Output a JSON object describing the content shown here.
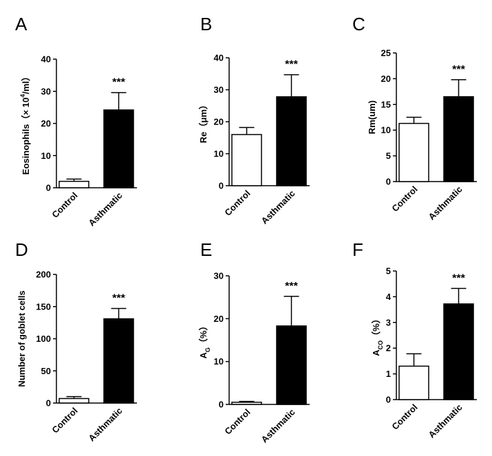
{
  "figure": {
    "panels": [
      "A",
      "B",
      "C",
      "D",
      "E",
      "F"
    ]
  },
  "chart_data": [
    {
      "panel": "A",
      "type": "bar",
      "categories": [
        "Control",
        "Asthmatic"
      ],
      "values": [
        2.0,
        24.2
      ],
      "errors": [
        0.7,
        5.4
      ],
      "fills": [
        "#ffffff",
        "#000000"
      ],
      "significance": "***",
      "ylabel": {
        "main": "Eosinophils（× 10",
        "sup": "4",
        "tail": "/ml）"
      },
      "ylim": [
        0,
        40
      ],
      "yticks": [
        0,
        10,
        20,
        30,
        40
      ],
      "ytick_labels": [
        "0",
        "10",
        "20",
        "30",
        "40"
      ]
    },
    {
      "panel": "B",
      "type": "bar",
      "categories": [
        "Control",
        "Asthmatic"
      ],
      "values": [
        16.0,
        27.8
      ],
      "errors": [
        2.2,
        6.9
      ],
      "fills": [
        "#ffffff",
        "#000000"
      ],
      "significance": "***",
      "ylabel": {
        "main": "Re（μm）"
      },
      "ylim": [
        0,
        40
      ],
      "yticks": [
        0,
        10,
        20,
        30,
        40
      ],
      "ytick_labels": [
        "0",
        "10",
        "20",
        "30",
        "40"
      ]
    },
    {
      "panel": "C",
      "type": "bar",
      "categories": [
        "Control",
        "Asthmatic"
      ],
      "values": [
        11.3,
        16.5
      ],
      "errors": [
        1.2,
        3.3
      ],
      "fills": [
        "#ffffff",
        "#000000"
      ],
      "significance": "***",
      "ylabel": {
        "main": "Rm(um)"
      },
      "ylim": [
        0,
        25
      ],
      "yticks": [
        0,
        5,
        10,
        15,
        20,
        25
      ],
      "ytick_labels": [
        "0",
        "5",
        "10",
        "15",
        "20",
        "25"
      ]
    },
    {
      "panel": "D",
      "type": "bar",
      "categories": [
        "Control",
        "Asthmatic"
      ],
      "values": [
        7,
        131
      ],
      "errors": [
        3,
        16
      ],
      "fills": [
        "#ffffff",
        "#000000"
      ],
      "significance": "***",
      "ylabel": {
        "main": "Number of goblet cells"
      },
      "ylim": [
        0,
        200
      ],
      "yticks": [
        0,
        50,
        100,
        150,
        200
      ],
      "ytick_labels": [
        "0",
        "50",
        "100",
        "150",
        "200"
      ]
    },
    {
      "panel": "E",
      "type": "bar",
      "categories": [
        "Control",
        "Asthmatic"
      ],
      "values": [
        0.5,
        18.3
      ],
      "errors": [
        0.2,
        6.9
      ],
      "fills": [
        "#ffffff",
        "#000000"
      ],
      "significance": "***",
      "ylabel": {
        "main": "A",
        "sub": "G",
        "tail": "（%）"
      },
      "ylim": [
        0,
        30
      ],
      "yticks": [
        0,
        10,
        20,
        30
      ],
      "ytick_labels": [
        "0",
        "10",
        "20",
        "30"
      ]
    },
    {
      "panel": "F",
      "type": "bar",
      "categories": [
        "Control",
        "Asthmatic"
      ],
      "values": [
        1.3,
        3.72
      ],
      "errors": [
        0.48,
        0.6
      ],
      "fills": [
        "#ffffff",
        "#000000"
      ],
      "significance": "***",
      "ylabel": {
        "main": "A",
        "sub": "CO",
        "tail": "（%）"
      },
      "ylim": [
        0,
        5
      ],
      "yticks": [
        0,
        1,
        2,
        3,
        4,
        5
      ],
      "ytick_labels": [
        "0",
        "1",
        "2",
        "3",
        "4",
        "5"
      ]
    }
  ]
}
